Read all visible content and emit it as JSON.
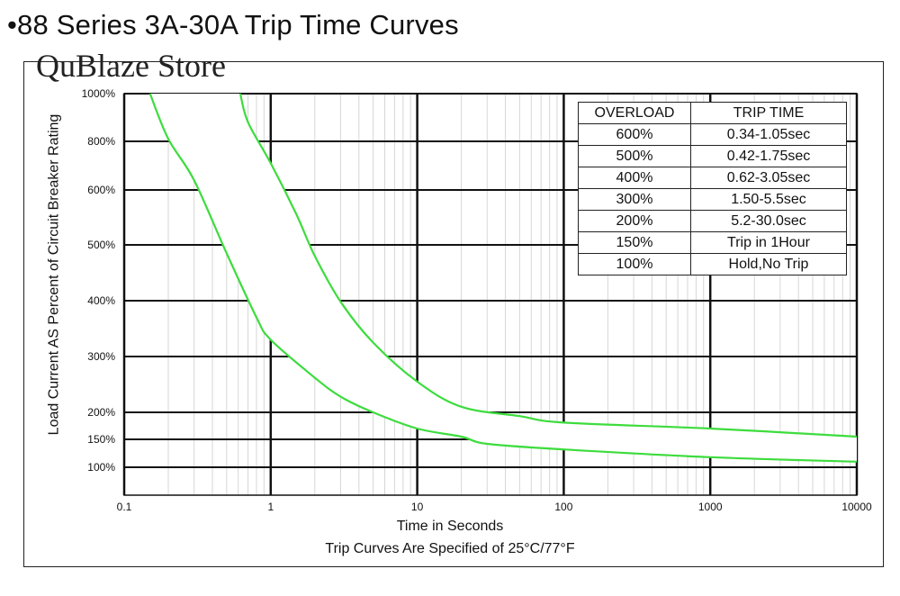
{
  "page": {
    "title": "•88 Series 3A-30A Trip Time Curves",
    "watermark": "QuBlaze Store",
    "footnote": "Trip Curves Are Specified of 25°C/77°F"
  },
  "table": {
    "headers": [
      "OVERLOAD",
      "TRIP TIME"
    ],
    "rows": [
      [
        "600%",
        "0.34-1.05sec"
      ],
      [
        "500%",
        "0.42-1.75sec"
      ],
      [
        "400%",
        "0.62-3.05sec"
      ],
      [
        "300%",
        "1.50-5.5sec"
      ],
      [
        "200%",
        "5.2-30.0sec"
      ],
      [
        "150%",
        "Trip in 1Hour"
      ],
      [
        "100%",
        "Hold,No Trip"
      ]
    ]
  },
  "chart_data": {
    "type": "line",
    "title": "88 Series 3A-30A Trip Time Curves",
    "xlabel": "Time in Seconds",
    "ylabel": "Load Current AS Percent of Circuit Breaker Rating",
    "x_scale": "log",
    "xlim": [
      0.1,
      10000
    ],
    "x_ticks": [
      0.1,
      1,
      10,
      100,
      1000,
      10000
    ],
    "x_tick_labels": [
      "0.1",
      "1",
      "10",
      "100",
      "1000",
      "10000"
    ],
    "y_ticks": [
      100,
      150,
      200,
      300,
      400,
      500,
      600,
      800,
      1000
    ],
    "y_tick_labels": [
      "100%",
      "150%",
      "200%",
      "300%",
      "400%",
      "500%",
      "600%",
      "800%",
      "1000%"
    ],
    "grid": true,
    "line_color": "#3ddc3d",
    "series": [
      {
        "points": [
          [
            0.15,
            1000
          ],
          [
            0.2,
            810
          ],
          [
            0.3,
            640
          ],
          [
            0.5,
            485
          ],
          [
            0.8,
            370
          ],
          [
            1,
            330
          ],
          [
            2,
            262
          ],
          [
            3,
            228
          ],
          [
            5,
            200
          ],
          [
            10,
            170
          ],
          [
            20,
            155
          ],
          [
            30,
            142
          ],
          [
            100,
            132
          ],
          [
            1000,
            118
          ],
          [
            10000,
            110
          ]
        ]
      },
      {
        "points": [
          [
            0.62,
            1000
          ],
          [
            0.7,
            880
          ],
          [
            1,
            710
          ],
          [
            1.5,
            555
          ],
          [
            2,
            480
          ],
          [
            3,
            398
          ],
          [
            5,
            325
          ],
          [
            10,
            255
          ],
          [
            20,
            210
          ],
          [
            50,
            193
          ],
          [
            100,
            181
          ],
          [
            1000,
            170
          ],
          [
            10000,
            155
          ]
        ]
      }
    ]
  }
}
